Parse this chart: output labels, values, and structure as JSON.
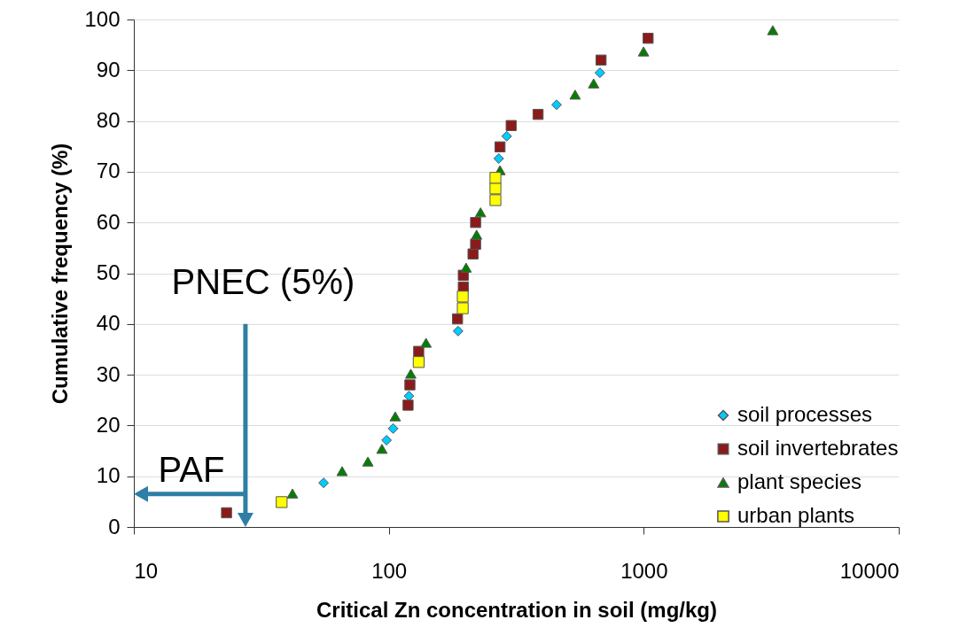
{
  "chart_data": {
    "type": "scatter",
    "xlabel": "Critical Zn concentration in soil (mg/kg)",
    "ylabel": "Cumulative frequency (%)",
    "log": "x",
    "xlim": [
      10,
      10000
    ],
    "xticks": [
      10,
      100,
      1000,
      10000
    ],
    "ylim": [
      0,
      100
    ],
    "yticks": [
      0,
      10,
      20,
      30,
      40,
      50,
      60,
      70,
      80,
      90,
      100
    ],
    "grid": "y",
    "legend": "bottom right",
    "ref_lines": [
      {
        "axis": "x",
        "value": 27.4,
        "label": "PNEC (5%)",
        "color": "#2e7ea6"
      },
      {
        "axis": "y",
        "value": 6.5,
        "label": "PAF",
        "color": "#2e7ea6"
      }
    ],
    "series": [
      {
        "name": "soil processes",
        "color": "#00ccff",
        "marker": "diamond",
        "x": [
          55.5,
          98,
          104,
          120,
          187,
          270,
          290,
          455,
          673
        ],
        "values": [
          8.7,
          17.1,
          19.4,
          25.8,
          38.6,
          72.6,
          77,
          83.2,
          89.5
        ]
      },
      {
        "name": "soil invertebrates",
        "color": "#8b1a1a",
        "marker": "square",
        "x": [
          23.1,
          119,
          121,
          131,
          186,
          196,
          196,
          214,
          219,
          219,
          273,
          302,
          385,
          680,
          1040
        ],
        "values": [
          2.8,
          24,
          28,
          34.6,
          41,
          47.3,
          49.6,
          53.8,
          55.7,
          60,
          74.9,
          79.1,
          81.3,
          92,
          96.3
        ]
      },
      {
        "name": "plant species",
        "color": "#008000",
        "marker": "triangle",
        "x": [
          41.9,
          65.6,
          82.8,
          94,
          106,
          122,
          140,
          201,
          221,
          229,
          273,
          538,
          636,
          998,
          3206
        ],
        "values": [
          6.6,
          11,
          12.9,
          15.4,
          21.8,
          30.2,
          36.3,
          51.1,
          57.6,
          62,
          70.3,
          85.2,
          87.4,
          93.7,
          97.9
        ]
      },
      {
        "name": "urban plants",
        "color": "#ffff00",
        "marker": "square",
        "x": [
          38,
          131,
          195,
          195,
          262,
          262,
          262
        ],
        "values": [
          4.9,
          32.5,
          43.1,
          45.4,
          64.4,
          66.7,
          68.8
        ]
      }
    ]
  }
}
